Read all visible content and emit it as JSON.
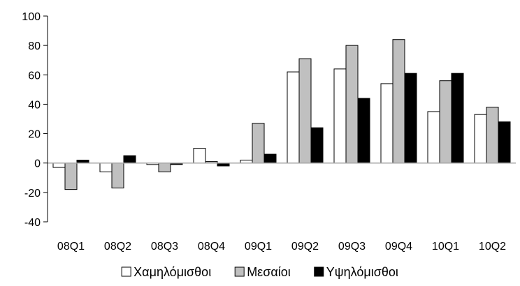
{
  "chart_data": {
    "type": "bar",
    "categories": [
      "08Q1",
      "08Q2",
      "08Q3",
      "08Q4",
      "09Q1",
      "09Q2",
      "09Q3",
      "09Q4",
      "10Q1",
      "10Q2"
    ],
    "series": [
      {
        "name": "Χαμηλόμισθοι",
        "color": "#ffffff",
        "values": [
          -3,
          -6,
          -1,
          10,
          2,
          62,
          64,
          54,
          35,
          33
        ]
      },
      {
        "name": "Μεσαίοι",
        "color": "#c0c0c0",
        "values": [
          -18,
          -17,
          -6,
          1,
          27,
          71,
          80,
          84,
          56,
          38
        ]
      },
      {
        "name": "Υψηλόμισθοι",
        "color": "#000000",
        "values": [
          2,
          5,
          -1,
          -2,
          6,
          24,
          44,
          61,
          61,
          28
        ]
      }
    ],
    "ylim": [
      -40,
      100
    ],
    "yticks": [
      -40,
      -20,
      0,
      20,
      40,
      60,
      80,
      100
    ],
    "grid": false,
    "legend_position": "bottom",
    "axis_color": "#000000",
    "zero_line_color": "#a6a6a6"
  }
}
